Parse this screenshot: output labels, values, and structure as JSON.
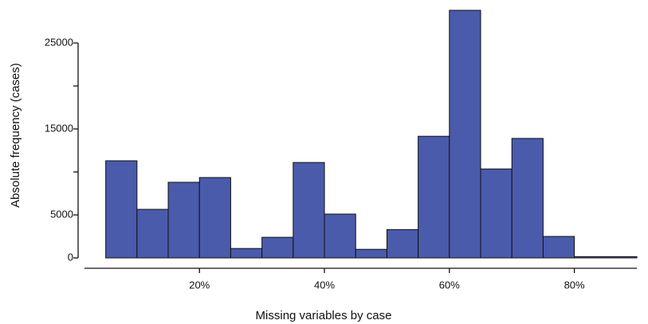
{
  "chart_data": {
    "type": "histogram",
    "x_label": "Missing variables by case",
    "y_label": "Absolute frequency (cases)",
    "bins": [
      5,
      10,
      15,
      20,
      25,
      30,
      35,
      40,
      45,
      50,
      55,
      60,
      65,
      70,
      75,
      80,
      90
    ],
    "values": [
      11300,
      5650,
      8800,
      9350,
      1100,
      2400,
      11100,
      5100,
      1000,
      3300,
      14150,
      28800,
      10350,
      13900,
      2500,
      150
    ],
    "color": "#4a5bab",
    "xlim": [
      1.6,
      90
    ],
    "xticks": [
      {
        "value": 20,
        "label": "20%"
      },
      {
        "value": 40,
        "label": "40%"
      },
      {
        "value": 60,
        "label": "60%"
      },
      {
        "value": 80,
        "label": "80%"
      }
    ],
    "ylim": [
      0,
      29000
    ],
    "yticks": [
      0,
      5000,
      15000,
      25000
    ],
    "yminor_ticks": [
      10000,
      20000
    ]
  }
}
